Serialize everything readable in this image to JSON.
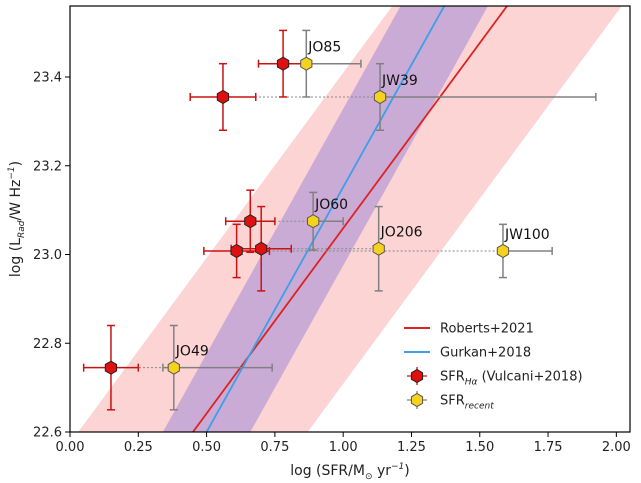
{
  "chart_data": {
    "type": "scatter",
    "xlabel": {
      "main": "log (SFR/M",
      "sub": "⊙",
      "tail": " yr",
      "sup": "−1",
      "close": ")"
    },
    "ylabel": {
      "main": "log (L",
      "sub": "Rad",
      "tail": "/W Hz",
      "sup": "−1",
      "close": ")"
    },
    "xlim": [
      0.0,
      2.05
    ],
    "ylim": [
      22.6,
      23.56
    ],
    "x_ticks": [
      "0.00",
      "0.25",
      "0.50",
      "0.75",
      "1.00",
      "1.25",
      "1.50",
      "1.75",
      "2.00"
    ],
    "y_ticks": [
      "22.6",
      "22.8",
      "23.0",
      "23.2",
      "23.4"
    ],
    "grid": false,
    "legend_position": "lower-right",
    "colors": {
      "roberts": "#dd2222",
      "gurkan": "#3d9fe8",
      "roberts_band": "#fbc6c6",
      "gurkan_band": "#b59ad6",
      "halpha_marker": "#e01010",
      "recent_marker": "#f5d21e",
      "errorbar_halpha": "#cc1111",
      "errorbar_recent": "#808080",
      "connector": "#888888"
    },
    "relations": [
      {
        "name": "Roberts+2021",
        "line": [
          [
            0.45,
            22.6
          ],
          [
            1.6,
            23.56
          ]
        ],
        "band_halfwidth_x": 0.42
      },
      {
        "name": "Gurkan+2018",
        "line": [
          [
            0.5,
            22.6
          ],
          [
            1.37,
            23.56
          ]
        ],
        "band_halfwidth_x": 0.16
      }
    ],
    "series": [
      {
        "name": "SFR_Hα (Vulcani+2018)",
        "points": [
          {
            "x": 0.15,
            "y": 22.745,
            "xerr": 0.1,
            "yerr": 0.095
          },
          {
            "x": 0.56,
            "y": 23.355,
            "xerr": 0.12,
            "yerr": 0.075
          },
          {
            "x": 0.78,
            "y": 23.43,
            "xerr": 0.09,
            "yerr": 0.075
          },
          {
            "x": 0.66,
            "y": 23.075,
            "xerr": 0.09,
            "yerr": 0.07
          },
          {
            "x": 0.61,
            "y": 23.008,
            "xerr": 0.12,
            "yerr": 0.06
          },
          {
            "x": 0.7,
            "y": 23.013,
            "xerr": 0.11,
            "yerr": 0.095
          }
        ]
      },
      {
        "name": "SFR_recent",
        "points": [
          {
            "label": "JO49",
            "x": 0.38,
            "y": 22.745,
            "xerr_low": 0.04,
            "xerr_high": 0.36,
            "yerr": 0.095
          },
          {
            "label": "JO85",
            "x": 0.865,
            "y": 23.43,
            "xerr_low": 0.0,
            "xerr_high": 0.2,
            "yerr": 0.075
          },
          {
            "label": "JW39",
            "x": 1.135,
            "y": 23.355,
            "xerr_low": 0.0,
            "xerr_high": 0.79,
            "yerr": 0.075
          },
          {
            "label": "JO60",
            "x": 0.89,
            "y": 23.075,
            "xerr_low": 0.0,
            "xerr_high": 0.11,
            "yerr": 0.065
          },
          {
            "label": "JO206",
            "x": 1.13,
            "y": 23.013,
            "xerr_low": 0.0,
            "xerr_high": 0.0,
            "yerr": 0.095
          },
          {
            "label": "JW100",
            "x": 1.585,
            "y": 23.008,
            "xerr_low": 0.0,
            "xerr_high": 0.18,
            "yerr": 0.06
          }
        ]
      }
    ],
    "connectors": [
      [
        0,
        0
      ],
      [
        1,
        2
      ],
      [
        2,
        1
      ],
      [
        3,
        3
      ],
      [
        4,
        5
      ],
      [
        5,
        4
      ]
    ],
    "legend": [
      {
        "kind": "line",
        "ref": "roberts",
        "text": "Roberts+2021"
      },
      {
        "kind": "line",
        "ref": "gurkan",
        "text": "Gurkan+2018"
      },
      {
        "kind": "marker",
        "ref": "halpha",
        "text_main": "SFR",
        "text_sub": "Hα",
        "text_tail": " (Vulcani+2018)"
      },
      {
        "kind": "marker",
        "ref": "recent",
        "text_main": "SFR",
        "text_sub": "recent",
        "text_tail": ""
      }
    ]
  }
}
